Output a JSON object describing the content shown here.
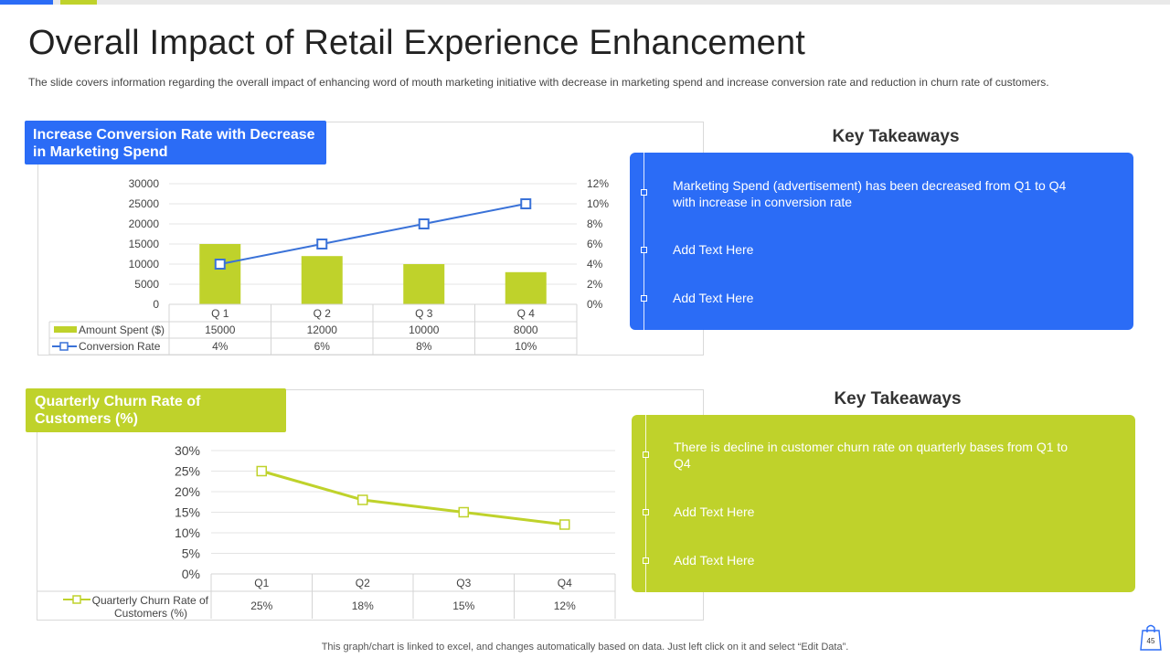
{
  "title": "Overall Impact of Retail Experience Enhancement",
  "subtitle": "The slide covers information regarding the overall impact of enhancing word of mouth marketing initiative with decrease in marketing spend and increase conversion rate and reduction in churn rate of customers.",
  "panel1": {
    "label": "Increase Conversion Rate with Decrease in Marketing Spend"
  },
  "panel2": {
    "label": "Quarterly Churn Rate of Customers (%)"
  },
  "takeaways1": {
    "title": "Key Takeaways",
    "items": [
      "Marketing Spend (advertisement) has been decreased from Q1 to Q4 with increase in conversion rate",
      "Add Text Here",
      "Add Text Here"
    ]
  },
  "takeaways2": {
    "title": "Key Takeaways",
    "items": [
      "There is decline in customer churn rate on quarterly bases from Q1 to Q4",
      "Add Text Here",
      "Add Text Here"
    ]
  },
  "footer": "This graph/chart is linked to excel,  and changes automatically based on data. Just left click on it and select “Edit Data”.",
  "page_number": "45",
  "colors": {
    "blue": "#2b6cf6",
    "green": "#bfd22b",
    "line_blue": "#3a72d8"
  },
  "chart_data": [
    {
      "type": "bar",
      "title": "Increase Conversion Rate with Decrease in Marketing Spend",
      "categories": [
        "Q 1",
        "Q 2",
        "Q 3",
        "Q 4"
      ],
      "series": [
        {
          "name": "Amount Spent ($)",
          "type": "bar",
          "axis": "left",
          "values": [
            15000,
            12000,
            10000,
            8000
          ],
          "labels": [
            "15000",
            "12000",
            "10000",
            "8000"
          ]
        },
        {
          "name": "Conversion Rate",
          "type": "line",
          "axis": "right",
          "values": [
            4,
            6,
            8,
            10
          ],
          "labels": [
            "4%",
            "6%",
            "8%",
            "10%"
          ]
        }
      ],
      "ylim_left": [
        0,
        30000
      ],
      "yticks_left": [
        "0",
        "5000",
        "10000",
        "15000",
        "20000",
        "25000",
        "30000"
      ],
      "ylim_right": [
        0,
        12
      ],
      "yticks_right": [
        "0%",
        "2%",
        "4%",
        "6%",
        "8%",
        "10%",
        "12%"
      ],
      "data_table": true
    },
    {
      "type": "line",
      "title": "Quarterly Churn Rate of Customers (%)",
      "categories": [
        "Q1",
        "Q2",
        "Q3",
        "Q4"
      ],
      "series": [
        {
          "name": "Quarterly Churn Rate of Customers (%)",
          "values": [
            25,
            18,
            15,
            12
          ],
          "labels": [
            "25%",
            "18%",
            "15%",
            "12%"
          ]
        }
      ],
      "legend_lines": [
        "Quarterly Churn Rate of",
        "Customers (%)"
      ],
      "ylim": [
        0,
        30
      ],
      "yticks": [
        "0%",
        "5%",
        "10%",
        "15%",
        "20%",
        "25%",
        "30%"
      ],
      "data_table": true
    }
  ]
}
